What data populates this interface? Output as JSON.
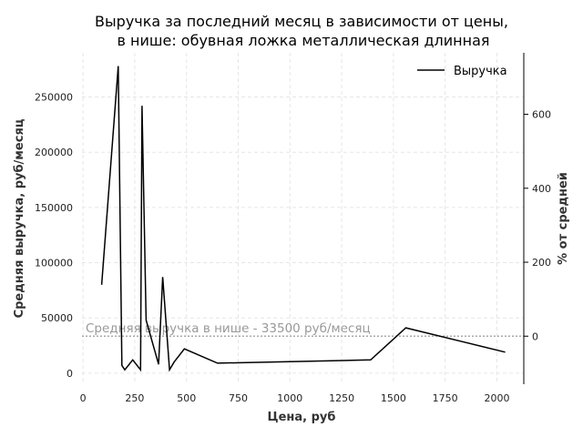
{
  "chart_data": {
    "type": "line",
    "title_line1": "Выручка за последний месяц в зависимости от цены,",
    "title_line2": "в нише: обувная ложка металлическая длинная",
    "xlabel": "Цена, руб",
    "ylabel": "Средняя выручка, руб/месяц",
    "y2label": "% от средней",
    "xlim": [
      -5,
      2130
    ],
    "ylim": [
      -10000,
      290000
    ],
    "y2lim": [
      -129.85,
      766.3
    ],
    "x_ticks": [
      0,
      250,
      500,
      750,
      1000,
      1250,
      1500,
      1750,
      2000
    ],
    "y_ticks": [
      0,
      50000,
      100000,
      150000,
      200000,
      250000
    ],
    "y2_ticks": [
      0,
      200,
      400,
      600
    ],
    "grid": true,
    "legend_position": "top-right",
    "series": [
      {
        "name": "Выручка",
        "color": "#000000",
        "x": [
          90,
          170,
          188,
          202,
          240,
          278,
          285,
          305,
          365,
          385,
          418,
          440,
          490,
          650,
          1390,
          1560,
          2040
        ],
        "y": [
          80000,
          278000,
          7000,
          3000,
          12000,
          3000,
          242000,
          48000,
          8000,
          87000,
          3000,
          10000,
          22000,
          9000,
          12000,
          41000,
          19000
        ]
      }
    ],
    "reference_line": {
      "y": 33500,
      "label": "Средняя выручка в нише - 33500 руб/месяц",
      "color": "#aaaaaa"
    }
  }
}
